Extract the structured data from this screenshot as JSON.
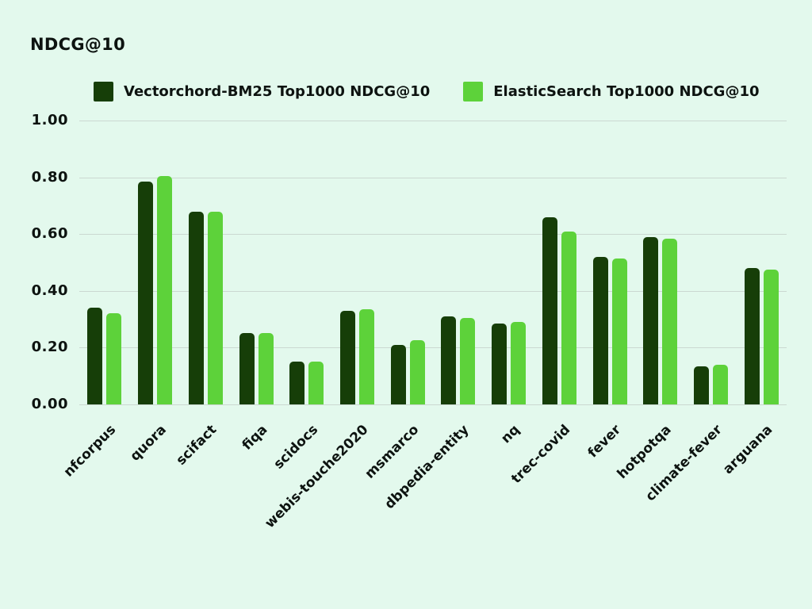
{
  "chart_data": {
    "type": "bar",
    "title": "NDCG@10",
    "categories": [
      "nfcorpus",
      "quora",
      "scifact",
      "fiqa",
      "scidocs",
      "webis-touche2020",
      "msmarco",
      "dbpedia-entity",
      "nq",
      "trec-covid",
      "fever",
      "hotpotqa",
      "climate-fever",
      "arguana"
    ],
    "series": [
      {
        "name": "Vectorchord-BM25 Top1000 NDCG@10",
        "color": "#163e08",
        "values": [
          0.34,
          0.785,
          0.68,
          0.25,
          0.15,
          0.33,
          0.21,
          0.31,
          0.285,
          0.66,
          0.52,
          0.59,
          0.135,
          0.48
        ]
      },
      {
        "name": "ElasticSearch Top1000 NDCG@10",
        "color": "#5dd23a",
        "values": [
          0.32,
          0.805,
          0.68,
          0.25,
          0.15,
          0.335,
          0.225,
          0.305,
          0.29,
          0.61,
          0.515,
          0.585,
          0.14,
          0.475
        ]
      }
    ],
    "ylim": [
      0,
      1.0
    ],
    "yticks": [
      1.0,
      0.8,
      0.6,
      0.4,
      0.2,
      0.0
    ],
    "ytick_labels": [
      "1.00",
      "0.80",
      "0.60",
      "0.40",
      "0.20",
      "0.00"
    ],
    "grid": "horizontal",
    "legend_position": "top",
    "colors": {
      "background": "#e3f9ed",
      "gridline": "#cbd8d1",
      "text": "#0d1310"
    }
  }
}
